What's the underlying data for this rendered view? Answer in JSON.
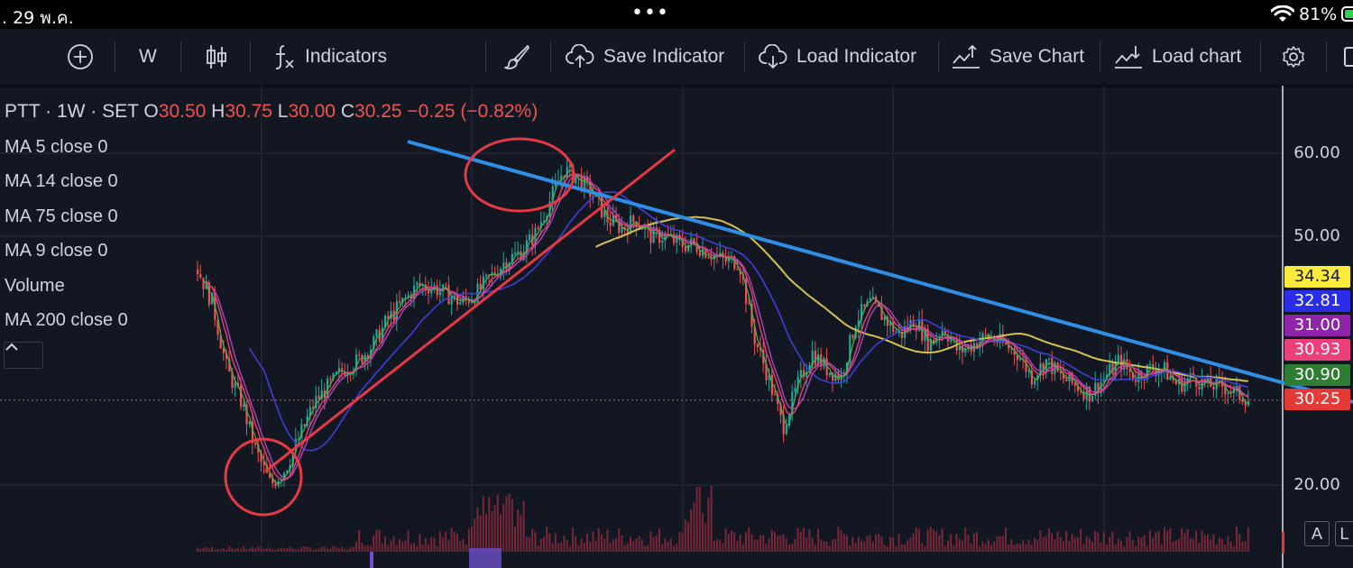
{
  "status_bar": {
    "date": ". 29 พ.ค.",
    "dots": "•••",
    "battery_percent": "81%",
    "wifi_icon": "wifi-icon",
    "battery_icon": "battery-icon",
    "battery_color": "#30d158"
  },
  "toolbar": {
    "add_icon": "plus-circle-icon",
    "interval": "W",
    "chart_type_icon": "candlestick-icon",
    "indicators_icon": "fx-icon",
    "indicators_label": "Indicators",
    "brush_icon": "brush-icon",
    "save_indicator_label": "Save Indicator",
    "load_indicator_label": "Load Indicator",
    "save_chart_label": "Save Chart",
    "load_chart_label": "Load chart",
    "settings_icon": "gear-icon"
  },
  "legend": {
    "symbol": "PTT · 1W · SET",
    "o_label": "O",
    "o_value": "30.50",
    "h_label": "H",
    "h_value": "30.75",
    "l_label": "L",
    "l_value": "30.00",
    "c_label": "C",
    "c_value": "30.25",
    "change": "−0.25 (−0.82%)",
    "studies": [
      "MA 5 close 0",
      "MA 14 close 0",
      "MA 75 close 0",
      "MA 9 close 0",
      "Volume",
      "MA 200 close 0"
    ],
    "collapse_icon": "chevron-up-icon"
  },
  "price_axis": {
    "ticks": [
      "60.00",
      "50.00",
      "20.00"
    ],
    "badges": [
      {
        "value": "34.34",
        "bg": "#ffeb3b",
        "fg": "#131722"
      },
      {
        "value": "32.81",
        "bg": "#2a2ee8",
        "fg": "#ffffff"
      },
      {
        "value": "31.00",
        "bg": "#8e24aa",
        "fg": "#ffffff"
      },
      {
        "value": "30.93",
        "bg": "#ec407a",
        "fg": "#ffffff"
      },
      {
        "value": "30.90",
        "bg": "#2e7d32",
        "fg": "#ffffff"
      },
      {
        "value": "30.25",
        "bg": "#e53935",
        "fg": "#ffffff"
      }
    ],
    "auto_label": "A",
    "log_label": "L"
  },
  "chart_data": {
    "type": "candlestick",
    "symbol": "PTT",
    "interval": "1W",
    "exchange": "SET",
    "last": {
      "open": 30.5,
      "high": 30.75,
      "low": 30.0,
      "close": 30.25,
      "change": -0.25,
      "change_pct": -0.82
    },
    "y_ticks": [
      60.0,
      50.0,
      20.0
    ],
    "price_path": [
      46,
      42,
      34,
      30,
      24,
      20,
      22,
      26,
      30,
      32,
      34,
      35,
      37,
      40,
      42,
      44,
      44,
      43,
      42,
      43,
      45,
      47,
      48,
      50,
      54,
      58,
      57,
      55,
      52,
      51,
      52,
      50,
      50,
      49,
      49,
      48,
      47,
      47,
      38,
      33,
      27,
      32,
      36,
      34,
      33,
      40,
      42,
      40,
      38,
      40,
      37,
      39,
      36,
      37,
      38,
      37,
      36,
      33,
      35,
      33,
      32,
      31,
      33,
      35,
      33,
      34,
      34,
      32,
      33,
      32,
      32,
      31,
      30.25
    ],
    "last_ma_values": {
      "ma5": 30.9,
      "ma14": 30.93,
      "ma75": 32.81,
      "ma9": 31.0,
      "ma200": 34.34
    },
    "series_colors": {
      "up": "#26a69a",
      "down": "#ef5350",
      "ma5": "#4caf50",
      "ma14": "#ec407a",
      "ma75": "#3f3fd8",
      "ma9": "#ab47bc",
      "ma200": "#d4c150",
      "volume": "#8a2a3c"
    },
    "drawings": {
      "downtrend_color": "#2f8fe6",
      "uptrend_color": "#e53945",
      "circle_color": "#e53945"
    }
  }
}
